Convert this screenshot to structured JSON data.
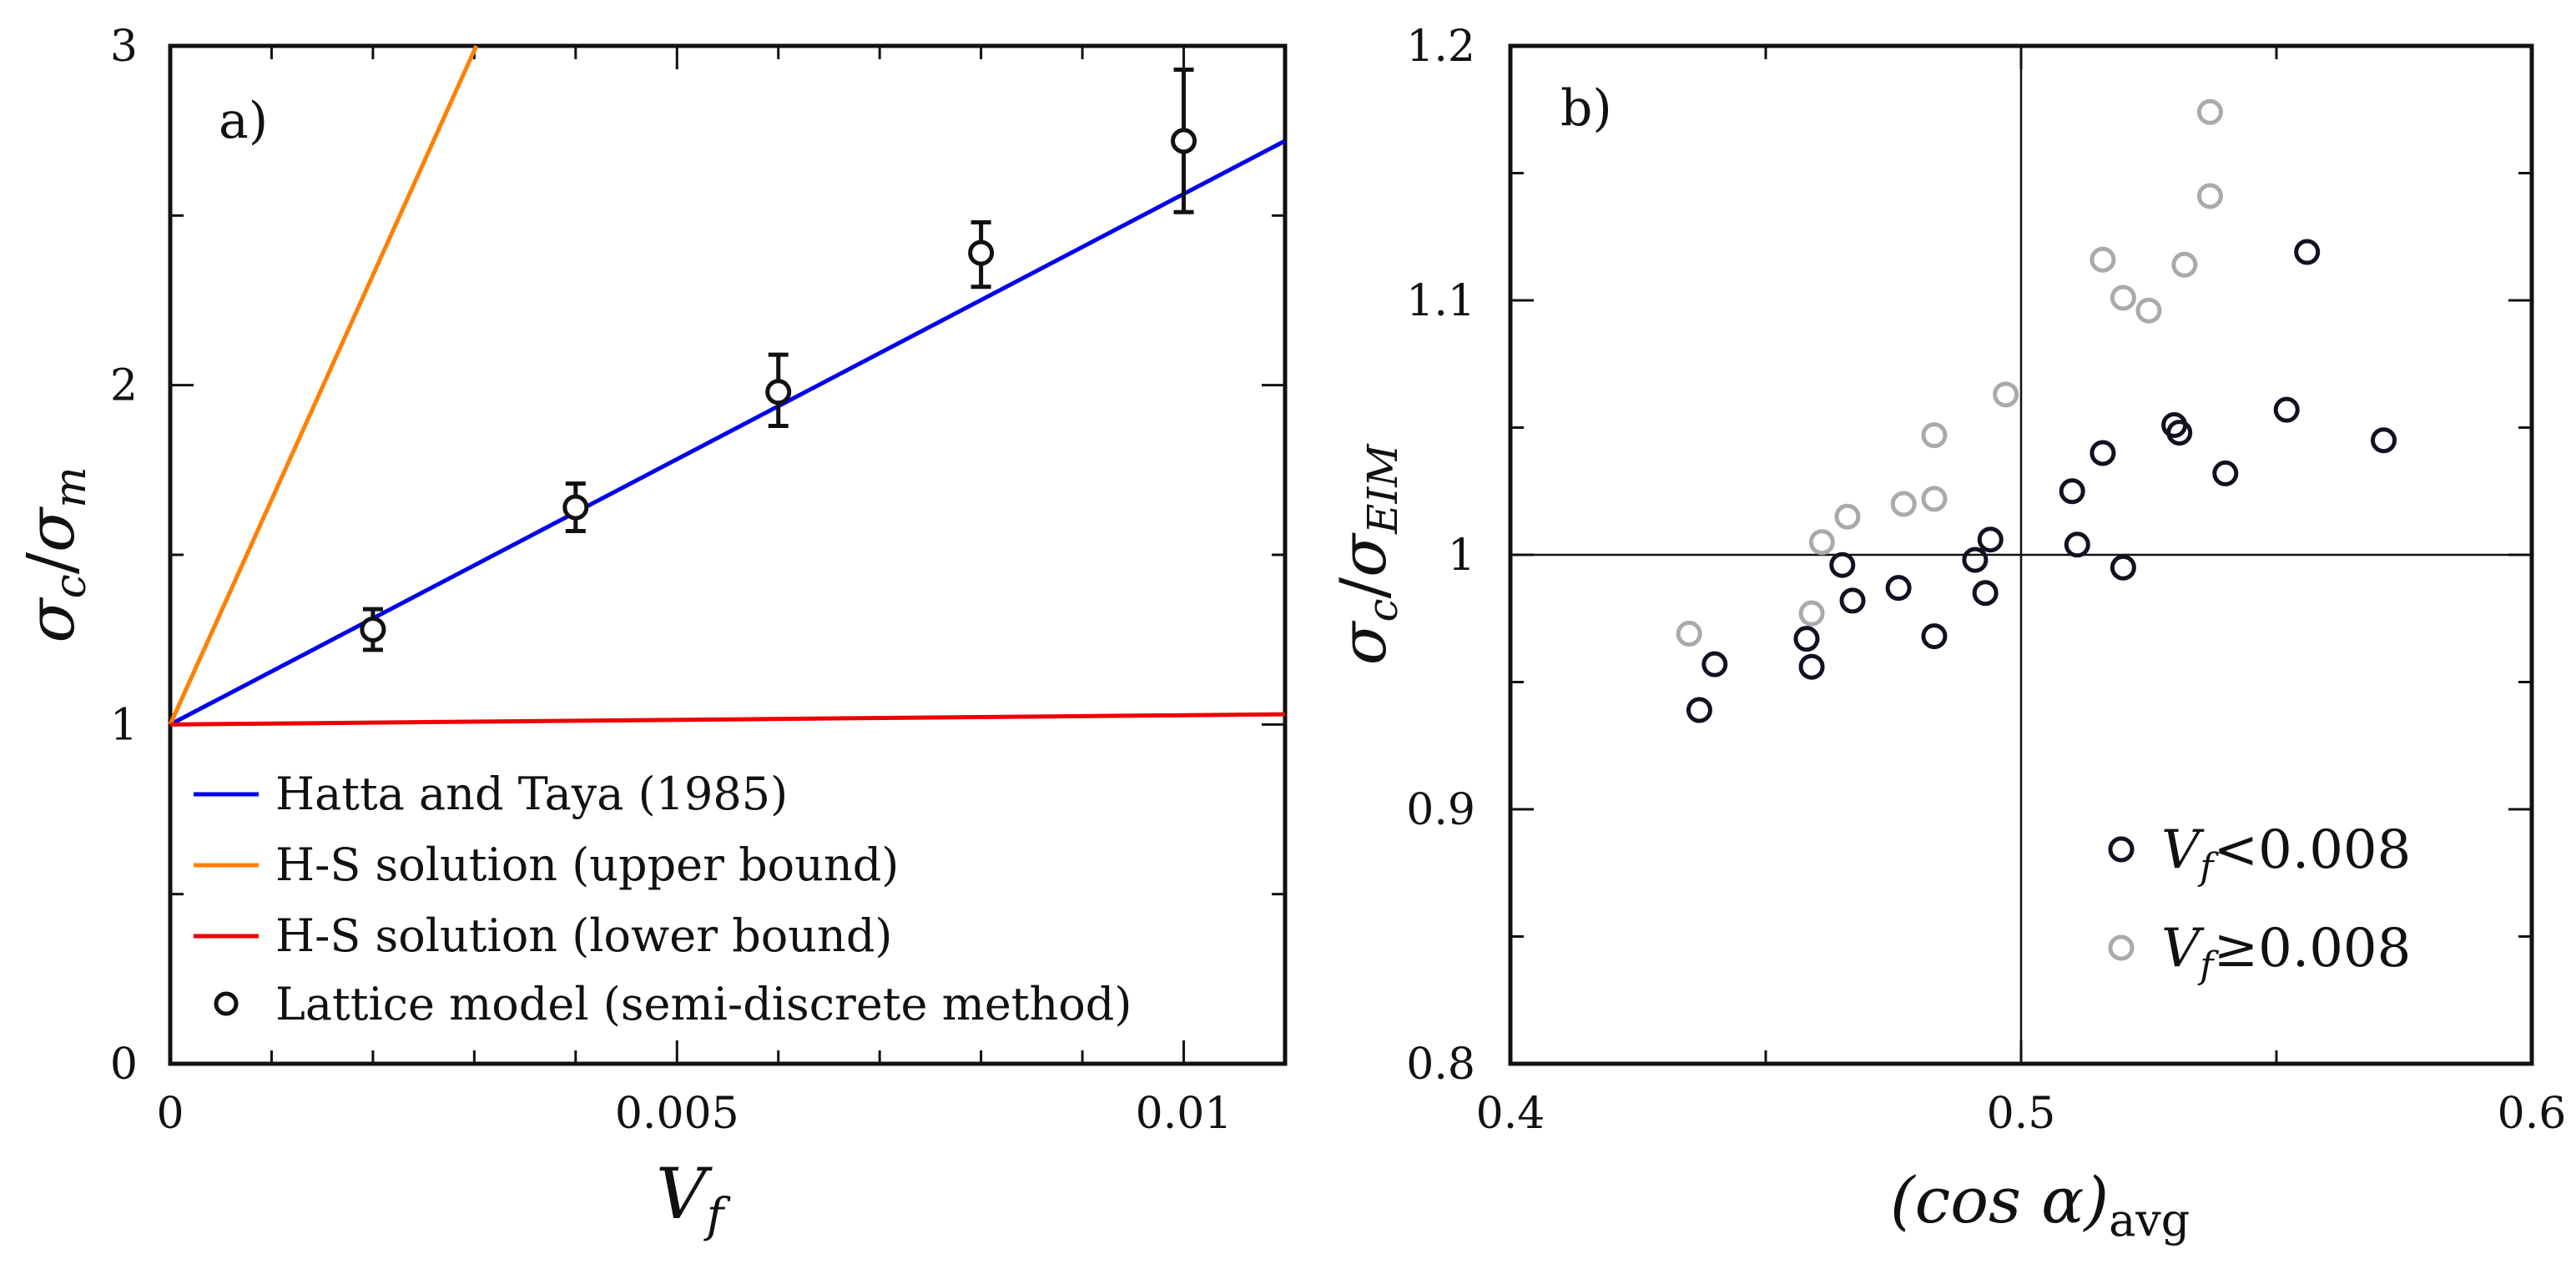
{
  "chart_data": [
    {
      "panel": "a)",
      "type": "line",
      "xlabel": "V_f",
      "ylabel": "σ_c/σ_m",
      "xlim": [
        0,
        0.011
      ],
      "ylim": [
        0,
        3
      ],
      "x_ticks": [
        0,
        0.005,
        0.01
      ],
      "x_tick_labels": [
        "0",
        "0.005",
        "0.01"
      ],
      "y_ticks": [
        0,
        1,
        2,
        3
      ],
      "y_tick_labels": [
        "0",
        "1",
        "2",
        "3"
      ],
      "series": [
        {
          "name": "Hatta and Taya (1985)",
          "kind": "line",
          "color": "#0000ee",
          "x": [
            0,
            0.011
          ],
          "y": [
            1,
            2.72
          ]
        },
        {
          "name": "H-S solution (upper bound)",
          "kind": "line",
          "color": "#ff8000",
          "x": [
            0,
            0.00302
          ],
          "y": [
            1,
            3
          ]
        },
        {
          "name": "H-S solution (lower bound)",
          "kind": "line",
          "color": "#ee0000",
          "x": [
            0,
            0.011
          ],
          "y": [
            1,
            1.03
          ]
        },
        {
          "name": "Lattice model (semi-discrete method)",
          "kind": "scatter",
          "color": "#111111",
          "x": [
            0.002,
            0.004,
            0.006,
            0.008,
            0.01
          ],
          "y": [
            1.28,
            1.64,
            1.98,
            2.39,
            2.72
          ],
          "err_low": [
            1.22,
            1.57,
            1.88,
            2.29,
            2.51
          ],
          "err_high": [
            1.34,
            1.71,
            2.09,
            2.48,
            2.93
          ]
        }
      ],
      "legend_position": "bottom-left"
    },
    {
      "panel": "b)",
      "type": "scatter",
      "xlabel": "(cos α)avg",
      "ylabel": "σ_c/σ_EIM",
      "xlim": [
        0.4,
        0.6
      ],
      "ylim": [
        0.8,
        1.2
      ],
      "x_ticks": [
        0.4,
        0.5,
        0.6
      ],
      "x_tick_labels": [
        "0.4",
        "0.5",
        "0.6"
      ],
      "y_ticks": [
        0.8,
        0.9,
        1.0,
        1.1,
        1.2
      ],
      "y_tick_labels": [
        "0.8",
        "0.9",
        "1",
        "1.1",
        "1.2"
      ],
      "reference_lines": {
        "x": 0.5,
        "y": 1.0
      },
      "series": [
        {
          "name": "V_f < 0.008",
          "color": "#111122",
          "x": [
            0.437,
            0.44,
            0.458,
            0.459,
            0.465,
            0.467,
            0.476,
            0.483,
            0.491,
            0.493,
            0.494,
            0.51,
            0.511,
            0.516,
            0.52,
            0.53,
            0.531,
            0.54,
            0.552,
            0.556,
            0.571
          ],
          "y": [
            0.939,
            0.957,
            0.967,
            0.956,
            0.996,
            0.982,
            0.987,
            0.968,
            0.998,
            0.985,
            1.006,
            1.025,
            1.004,
            1.04,
            0.995,
            1.051,
            1.048,
            1.032,
            1.057,
            1.119,
            1.045
          ]
        },
        {
          "name": "V_f ≥ 0.008",
          "color": "#aaaaaa",
          "x": [
            0.435,
            0.459,
            0.461,
            0.466,
            0.477,
            0.483,
            0.483,
            0.497,
            0.516,
            0.52,
            0.525,
            0.532,
            0.537,
            0.537
          ],
          "y": [
            0.969,
            0.977,
            1.005,
            1.015,
            1.02,
            1.022,
            1.047,
            1.063,
            1.116,
            1.101,
            1.096,
            1.114,
            1.141,
            1.174
          ]
        }
      ],
      "legend_position": "bottom-right"
    }
  ],
  "legend_a": [
    {
      "label": "Hatta and Taya (1985)",
      "marker": "line",
      "color": "#0000ee"
    },
    {
      "label": "H-S solution (upper bound)",
      "marker": "line",
      "color": "#ff8000"
    },
    {
      "label": "H-S solution (lower bound)",
      "marker": "line",
      "color": "#ee0000"
    },
    {
      "label": "Lattice model (semi-discrete method)",
      "marker": "circle",
      "color": "#111111"
    }
  ],
  "legend_b": [
    {
      "label_sym": "V",
      "label_sub": "f",
      "label_rel": "<0.008",
      "color": "#111122"
    },
    {
      "label_sym": "V",
      "label_sub": "f",
      "label_rel": "≥0.008",
      "color": "#aaaaaa"
    }
  ],
  "axis_text": {
    "a_xlabel_sym": "V",
    "a_xlabel_sub": "f",
    "a_ylabel_sym1": "σ",
    "a_ylabel_sub1": "c",
    "a_ylabel_slash": "/",
    "a_ylabel_sym2": "σ",
    "a_ylabel_sub2": "m",
    "b_xlabel_main": "(cos α)",
    "b_xlabel_sub": "avg",
    "b_ylabel_sym1": "σ",
    "b_ylabel_sub1": "c",
    "b_ylabel_slash": "/",
    "b_ylabel_sym2": "σ",
    "b_ylabel_sub2": "EIM"
  }
}
